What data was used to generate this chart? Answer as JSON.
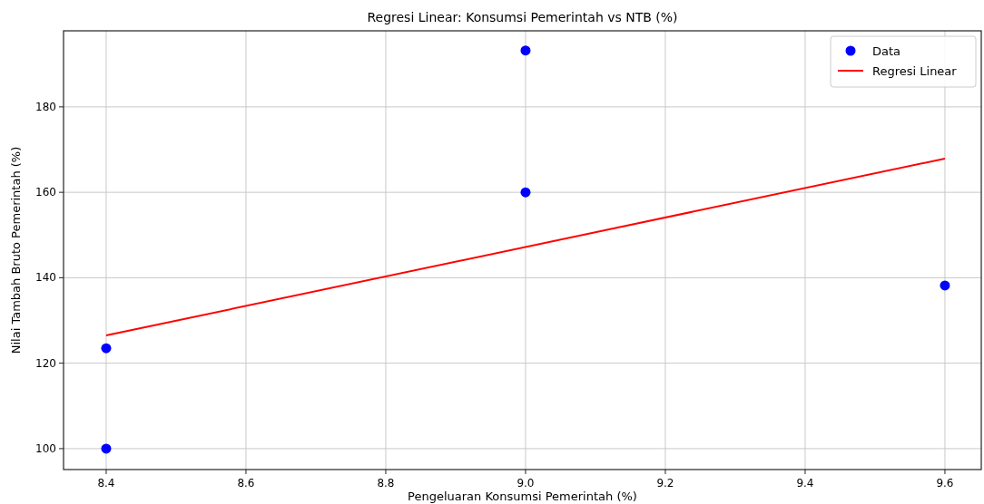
{
  "chart_data": {
    "type": "scatter",
    "title": "Regresi Linear: Konsumsi Pemerintah vs NTB (%)",
    "xlabel": "Pengeluaran Konsumsi Pemerintah (%)",
    "ylabel": "Nilai Tambah Bruto Pemerintah (%)",
    "series": [
      {
        "name": "Data",
        "marker": "circle",
        "color": "#0000ff",
        "x": [
          8.4,
          8.4,
          9.0,
          9.0,
          9.6
        ],
        "values": [
          100,
          123.5,
          160,
          193.2,
          138.2
        ]
      },
      {
        "name": "Regresi Linear",
        "type": "line",
        "color": "#ff0000",
        "x": [
          8.4,
          9.6
        ],
        "values": [
          126.5,
          167.9
        ]
      }
    ],
    "xlim": [
      8.339,
      9.652
    ],
    "xticks": [
      {
        "value": 8.4,
        "label": "8.4"
      },
      {
        "value": 8.6,
        "label": "8.6"
      },
      {
        "value": 8.8,
        "label": "8.8"
      },
      {
        "value": 9.0,
        "label": "9.0"
      },
      {
        "value": 9.2,
        "label": "9.2"
      },
      {
        "value": 9.4,
        "label": "9.4"
      },
      {
        "value": 9.6,
        "label": "9.6"
      }
    ],
    "ylim": [
      95.1,
      197.8
    ],
    "yticks": [
      100,
      120,
      140,
      160,
      180
    ],
    "grid": true,
    "legend": "top right",
    "line_style": "solid"
  }
}
